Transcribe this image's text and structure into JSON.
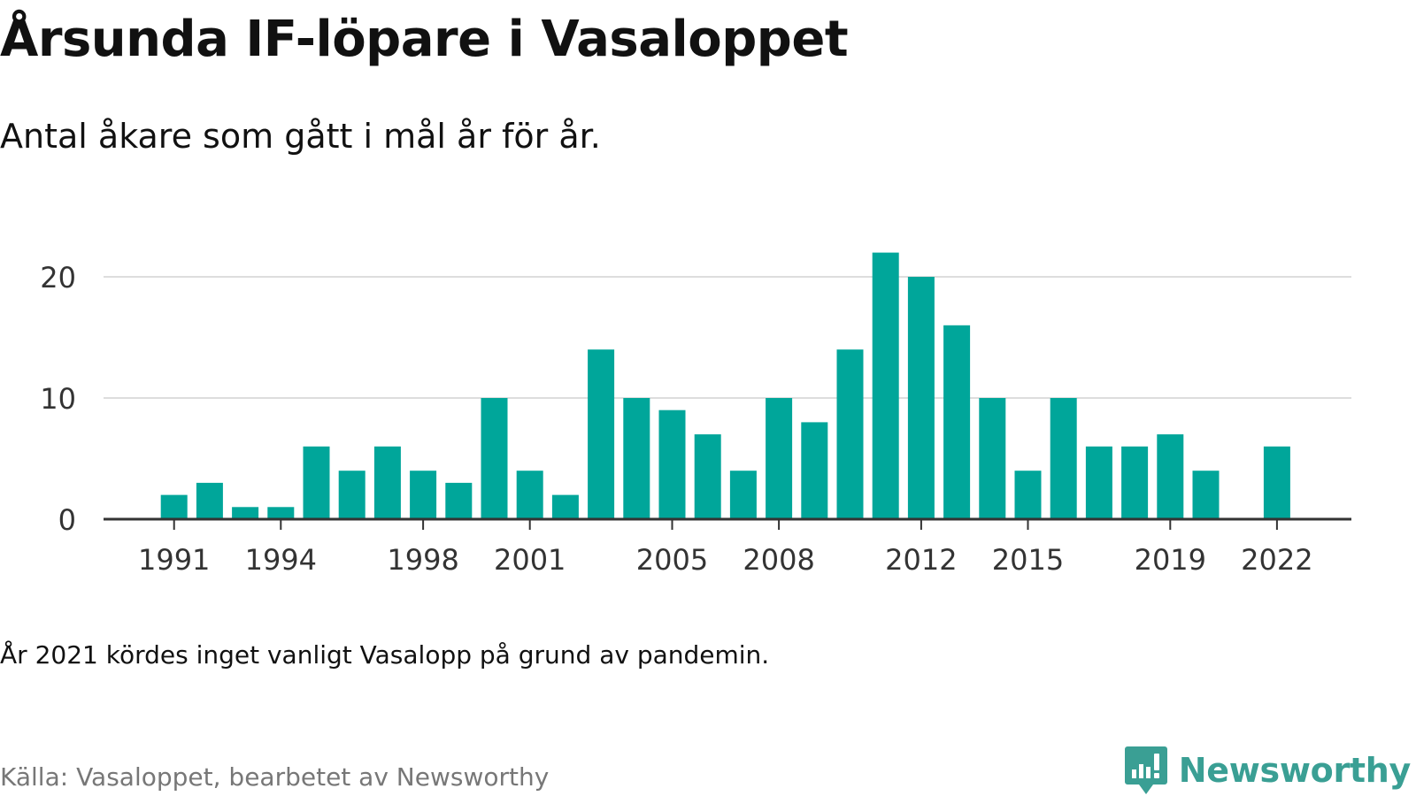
{
  "header": {
    "title": "Årsunda IF-löpare i Vasaloppet",
    "subtitle": "Antal åkare som gått i mål år för år."
  },
  "footer": {
    "note": "År 2021 kördes inget vanligt Vasalopp på grund av pandemin.",
    "source": "Källa: Vasaloppet, bearbetet av Newsworthy",
    "brand": "Newsworthy"
  },
  "colors": {
    "bar": "#00a69a",
    "grid": "#dddddd",
    "axis": "#333333",
    "brand": "#3a9f94"
  },
  "chart_data": {
    "type": "bar",
    "title": "Årsunda IF-löpare i Vasaloppet",
    "subtitle": "Antal åkare som gått i mål år för år.",
    "xlabel": "",
    "ylabel": "",
    "ylim": [
      0,
      22
    ],
    "yticks": [
      0,
      10,
      20
    ],
    "xticks": [
      1991,
      1994,
      1998,
      2001,
      2005,
      2008,
      2012,
      2015,
      2019,
      2022
    ],
    "grid": true,
    "categories": [
      1990,
      1991,
      1992,
      1993,
      1994,
      1995,
      1996,
      1997,
      1998,
      1999,
      2000,
      2001,
      2002,
      2003,
      2004,
      2005,
      2006,
      2007,
      2008,
      2009,
      2010,
      2011,
      2012,
      2013,
      2014,
      2015,
      2016,
      2017,
      2018,
      2019,
      2020,
      2021,
      2022
    ],
    "values": [
      null,
      2,
      3,
      1,
      1,
      6,
      4,
      6,
      4,
      3,
      10,
      4,
      2,
      14,
      10,
      9,
      7,
      4,
      10,
      8,
      14,
      22,
      20,
      16,
      10,
      4,
      10,
      6,
      6,
      7,
      4,
      null,
      6
    ]
  }
}
